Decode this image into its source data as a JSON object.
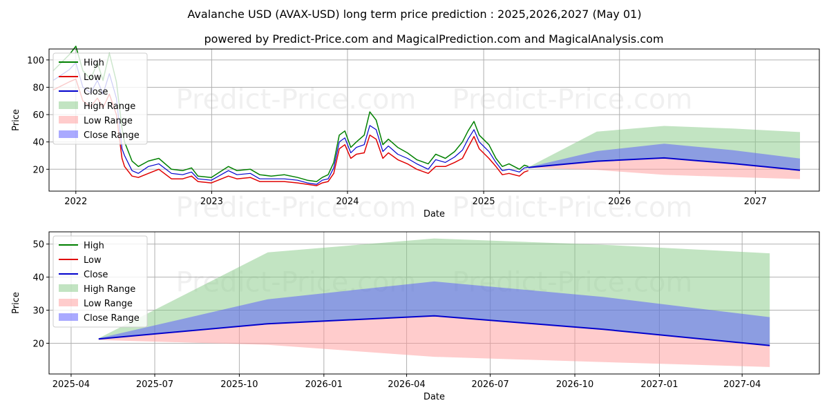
{
  "title": "Avalanche USD (AVAX-USD) long term price prediction : 2025,2026,2027 (May 01)",
  "subtitle": "powered by Predict-Price.com and MagicalPrediction.com and MagicalAnalysis.com",
  "watermark": "Predict-Price.com",
  "colors": {
    "high": "#008000",
    "low": "#e00000",
    "close": "#0000cc",
    "high_range": "#86c986",
    "low_range": "#ff9999",
    "close_range": "#5555ff",
    "grid": "#b0b0b0"
  },
  "chart_data": [
    {
      "type": "line",
      "xlabel": "Date",
      "ylabel": "Price",
      "x_ticks": [
        "2022",
        "2023",
        "2024",
        "2025",
        "2026",
        "2027"
      ],
      "y_ticks": [
        20,
        40,
        60,
        80,
        100
      ],
      "xlim": [
        "2021-10-21",
        "2027-06-22"
      ],
      "ylim": [
        4,
        108
      ],
      "grid": true,
      "legend_position": "top-left",
      "legend": [
        "High",
        "Low",
        "Close",
        "High Range",
        "Low Range",
        "Close Range"
      ],
      "history": {
        "x": [
          "2021-11-01",
          "2021-12-15",
          "2022-01-01",
          "2022-01-20",
          "2022-02-10",
          "2022-02-28",
          "2022-03-15",
          "2022-04-01",
          "2022-04-20",
          "2022-05-05",
          "2022-05-12",
          "2022-06-01",
          "2022-06-18",
          "2022-07-15",
          "2022-08-12",
          "2022-09-15",
          "2022-10-15",
          "2022-11-08",
          "2022-11-25",
          "2022-12-31",
          "2023-02-15",
          "2023-03-10",
          "2023-04-15",
          "2023-05-10",
          "2023-06-10",
          "2023-07-15",
          "2023-08-20",
          "2023-09-15",
          "2023-10-10",
          "2023-10-25",
          "2023-11-10",
          "2023-11-25",
          "2023-12-10",
          "2023-12-25",
          "2024-01-10",
          "2024-01-25",
          "2024-02-15",
          "2024-03-01",
          "2024-03-18",
          "2024-04-05",
          "2024-04-20",
          "2024-05-15",
          "2024-06-10",
          "2024-07-05",
          "2024-08-05",
          "2024-08-25",
          "2024-09-20",
          "2024-10-15",
          "2024-11-05",
          "2024-11-20",
          "2024-12-06",
          "2024-12-20",
          "2025-01-15",
          "2025-02-03",
          "2025-02-20",
          "2025-03-10",
          "2025-04-07",
          "2025-04-20",
          "2025-05-01"
        ],
        "high": [
          92,
          104,
          110,
          92,
          86,
          98,
          85,
          105,
          84,
          50,
          40,
          26,
          22,
          26,
          28,
          20,
          19,
          21,
          15,
          14,
          22,
          19,
          20,
          16,
          15,
          16,
          14,
          12,
          11,
          14,
          16,
          25,
          45,
          48,
          36,
          40,
          45,
          62,
          56,
          38,
          42,
          36,
          32,
          27,
          24,
          31,
          28,
          33,
          40,
          48,
          55,
          45,
          38,
          28,
          22,
          24,
          20,
          23,
          22
        ],
        "low": [
          78,
          84,
          86,
          70,
          66,
          72,
          65,
          75,
          60,
          28,
          22,
          15,
          14,
          17,
          20,
          13,
          13,
          15,
          11,
          10,
          15,
          13,
          14,
          11,
          11,
          11,
          10,
          9,
          8,
          10,
          11,
          17,
          35,
          38,
          28,
          31,
          32,
          45,
          42,
          28,
          32,
          27,
          24,
          20,
          17,
          22,
          22,
          25,
          28,
          36,
          44,
          35,
          28,
          22,
          16,
          17,
          15,
          18,
          19
        ],
        "close": [
          85,
          93,
          98,
          80,
          76,
          85,
          75,
          90,
          72,
          35,
          30,
          19,
          17,
          22,
          24,
          17,
          16,
          18,
          13,
          12,
          19,
          16,
          17,
          13,
          13,
          13,
          12,
          10,
          9,
          12,
          13,
          21,
          40,
          43,
          32,
          36,
          38,
          52,
          49,
          33,
          37,
          31,
          28,
          24,
          20,
          27,
          25,
          29,
          34,
          42,
          49,
          40,
          33,
          25,
          19,
          20,
          18,
          21,
          21.5
        ]
      },
      "forecast": {
        "x": [
          "2025-05-01",
          "2025-11-01",
          "2026-05-01",
          "2026-11-01",
          "2027-05-01"
        ],
        "high_range_upper": [
          21.5,
          47.5,
          51.7,
          49.8,
          47.2
        ],
        "close_range_upper": [
          21.5,
          33.3,
          38.7,
          34.0,
          27.9
        ],
        "close": [
          21.3,
          25.9,
          28.3,
          24.2,
          19.3
        ],
        "low_range_lower": [
          21.0,
          19.5,
          15.9,
          14.3,
          12.8
        ]
      }
    },
    {
      "type": "area",
      "xlabel": "Date",
      "ylabel": "Price",
      "x_ticks": [
        "2025-04",
        "2025-07",
        "2025-10",
        "2026-01",
        "2026-04",
        "2026-07",
        "2026-10",
        "2027-01",
        "2027-04"
      ],
      "y_ticks": [
        20,
        30,
        40,
        50
      ],
      "xlim": [
        "2025-03-08",
        "2027-06-24"
      ],
      "ylim": [
        10.7,
        53.7
      ],
      "grid": true,
      "legend_position": "top-left",
      "legend": [
        "High",
        "Low",
        "Close",
        "High Range",
        "Low Range",
        "Close Range"
      ],
      "x": [
        "2025-05-01",
        "2025-11-01",
        "2026-05-01",
        "2026-11-01",
        "2027-05-01"
      ],
      "high_range_upper": [
        21.5,
        47.5,
        51.7,
        49.8,
        47.2
      ],
      "close_range_upper": [
        21.5,
        33.3,
        38.7,
        34.0,
        27.9
      ],
      "close": [
        21.3,
        25.9,
        28.3,
        24.2,
        19.3
      ],
      "low_range_lower": [
        21.0,
        19.5,
        15.9,
        14.3,
        12.8
      ]
    }
  ]
}
